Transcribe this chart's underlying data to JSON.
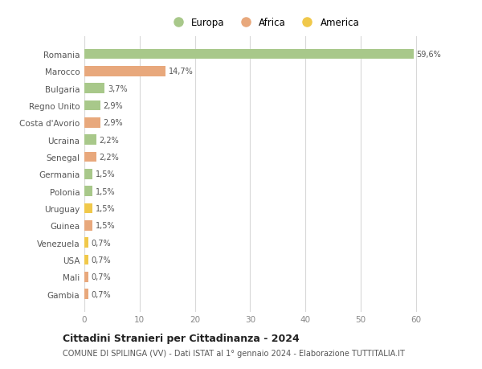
{
  "categories": [
    "Romania",
    "Marocco",
    "Bulgaria",
    "Regno Unito",
    "Costa d'Avorio",
    "Ucraina",
    "Senegal",
    "Germania",
    "Polonia",
    "Uruguay",
    "Guinea",
    "Venezuela",
    "USA",
    "Mali",
    "Gambia"
  ],
  "values": [
    59.6,
    14.7,
    3.7,
    2.9,
    2.9,
    2.2,
    2.2,
    1.5,
    1.5,
    1.5,
    1.5,
    0.7,
    0.7,
    0.7,
    0.7
  ],
  "labels": [
    "59,6%",
    "14,7%",
    "3,7%",
    "2,9%",
    "2,9%",
    "2,2%",
    "2,2%",
    "1,5%",
    "1,5%",
    "1,5%",
    "1,5%",
    "0,7%",
    "0,7%",
    "0,7%",
    "0,7%"
  ],
  "colors": [
    "#a8c88a",
    "#e8a87c",
    "#a8c88a",
    "#a8c88a",
    "#e8a87c",
    "#a8c88a",
    "#e8a87c",
    "#a8c88a",
    "#a8c88a",
    "#f0c84a",
    "#e8a87c",
    "#f0c84a",
    "#f0c84a",
    "#e8a87c",
    "#e8a87c"
  ],
  "legend_labels": [
    "Europa",
    "Africa",
    "America"
  ],
  "legend_colors": [
    "#a8c88a",
    "#e8a87c",
    "#f0c84a"
  ],
  "title": "Cittadini Stranieri per Cittadinanza - 2024",
  "subtitle": "COMUNE DI SPILINGA (VV) - Dati ISTAT al 1° gennaio 2024 - Elaborazione TUTTITALIA.IT",
  "xlim": [
    0,
    65
  ],
  "xticks": [
    0,
    10,
    20,
    30,
    40,
    50,
    60
  ],
  "background_color": "#ffffff",
  "grid_color": "#d8d8d8",
  "bar_height": 0.6
}
